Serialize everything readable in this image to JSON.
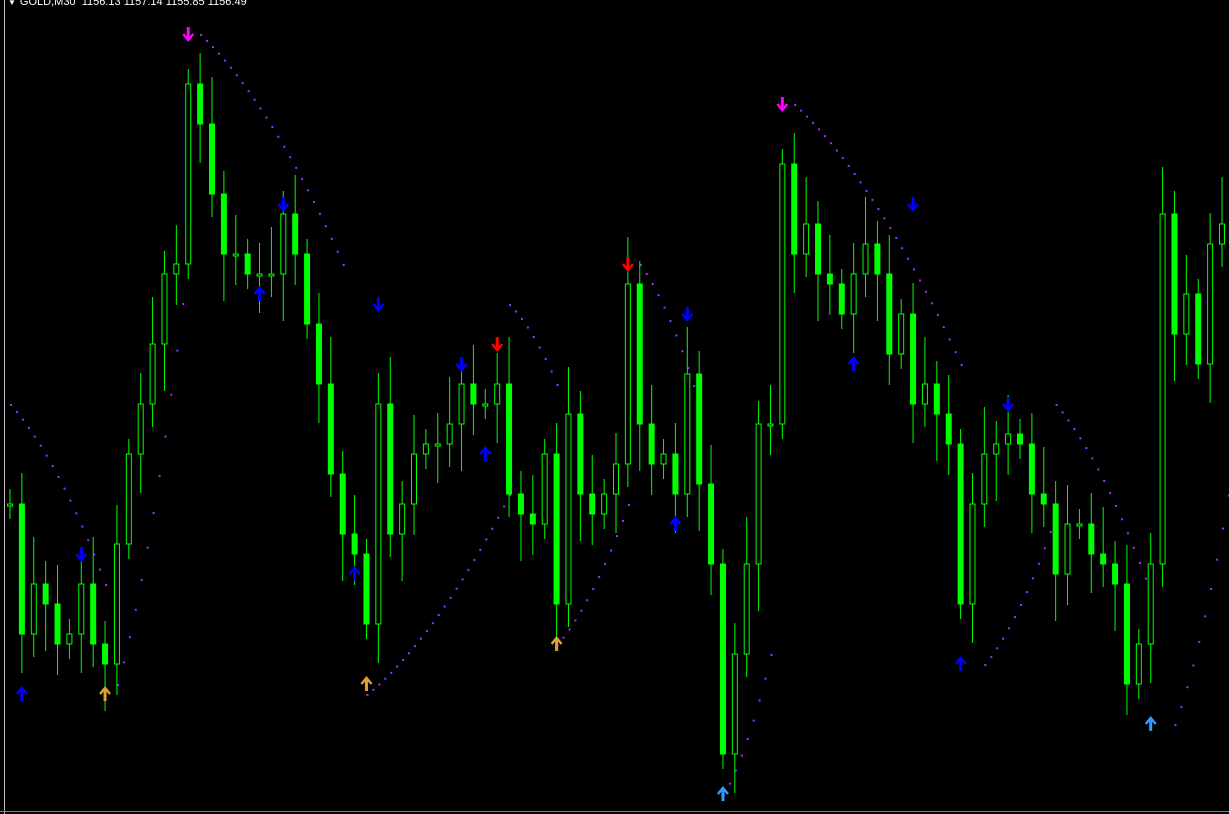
{
  "header": {
    "symbol": "GOLD,M30",
    "open": "1156.13",
    "high": "1157.14",
    "low": "1155.85",
    "close": "1156.49"
  },
  "colors": {
    "background": "#000000",
    "candle": "#00ff00",
    "sar": "#9933ff",
    "magenta": "#ff00ff",
    "blue": "#0000ff",
    "red": "#ff0000",
    "orange": "#e0a030",
    "lightblue": "#3399ff"
  },
  "chart_data": {
    "type": "candlestick",
    "symbol": "GOLD",
    "timeframe": "M30",
    "grid": false,
    "closes": [
      1131,
      1118,
      1123,
      1121,
      1117,
      1118,
      1123,
      1117,
      1115,
      1127,
      1136,
      1141,
      1147,
      1154,
      1155,
      1173,
      1169,
      1162,
      1156,
      1156,
      1154,
      1154,
      1154,
      1160,
      1156,
      1149,
      1143,
      1134,
      1128,
      1126,
      1119,
      1141,
      1128,
      1131,
      1136,
      1137,
      1137,
      1139,
      1143,
      1141,
      1141,
      1143,
      1132,
      1130,
      1129,
      1136,
      1121,
      1140,
      1132,
      1130,
      1132,
      1135,
      1153,
      1139,
      1135,
      1136,
      1132,
      1144,
      1133,
      1125,
      1106,
      1116,
      1125,
      1139,
      1139,
      1165,
      1156,
      1159,
      1154,
      1153,
      1150,
      1154,
      1157,
      1154,
      1146,
      1150,
      1141,
      1143,
      1140,
      1137,
      1121,
      1131,
      1136,
      1137,
      1138,
      1137,
      1132,
      1131,
      1124,
      1129,
      1129,
      1126,
      1125,
      1123,
      1113,
      1117,
      1125,
      1160,
      1148,
      1152,
      1145,
      1157,
      1159
    ],
    "arrows": [
      {
        "i": 1,
        "price": 1112,
        "dir": "up",
        "color": "blue"
      },
      {
        "i": 6,
        "price": 1126,
        "dir": "down",
        "color": "blue"
      },
      {
        "i": 8,
        "price": 1112,
        "dir": "up",
        "color": "orange"
      },
      {
        "i": 15,
        "price": 1178,
        "dir": "down",
        "color": "magenta"
      },
      {
        "i": 21,
        "price": 1152,
        "dir": "up",
        "color": "blue"
      },
      {
        "i": 23,
        "price": 1161,
        "dir": "down",
        "color": "blue"
      },
      {
        "i": 29,
        "price": 1124,
        "dir": "up",
        "color": "blue"
      },
      {
        "i": 30,
        "price": 1113,
        "dir": "up",
        "color": "orange"
      },
      {
        "i": 31,
        "price": 1151,
        "dir": "down",
        "color": "blue"
      },
      {
        "i": 38,
        "price": 1145,
        "dir": "down",
        "color": "blue"
      },
      {
        "i": 40,
        "price": 1136,
        "dir": "up",
        "color": "blue"
      },
      {
        "i": 41,
        "price": 1147,
        "dir": "down",
        "color": "red"
      },
      {
        "i": 46,
        "price": 1117,
        "dir": "up",
        "color": "orange"
      },
      {
        "i": 52,
        "price": 1155,
        "dir": "down",
        "color": "red"
      },
      {
        "i": 56,
        "price": 1129,
        "dir": "up",
        "color": "blue"
      },
      {
        "i": 57,
        "price": 1150,
        "dir": "down",
        "color": "blue"
      },
      {
        "i": 60,
        "price": 1102,
        "dir": "up",
        "color": "lightblue"
      },
      {
        "i": 65,
        "price": 1171,
        "dir": "down",
        "color": "magenta"
      },
      {
        "i": 71,
        "price": 1145,
        "dir": "up",
        "color": "blue"
      },
      {
        "i": 76,
        "price": 1161,
        "dir": "down",
        "color": "blue"
      },
      {
        "i": 80,
        "price": 1115,
        "dir": "up",
        "color": "blue"
      },
      {
        "i": 84,
        "price": 1141,
        "dir": "down",
        "color": "blue"
      },
      {
        "i": 96,
        "price": 1109,
        "dir": "up",
        "color": "lightblue"
      }
    ],
    "sar_segments": [
      [
        [
          0,
          1141
        ],
        [
          8,
          1123
        ]
      ],
      [
        [
          9,
          1113
        ],
        [
          15,
          1156
        ]
      ],
      [
        [
          16,
          1178
        ],
        [
          28,
          1155
        ]
      ],
      [
        [
          30,
          1112
        ],
        [
          42,
          1132
        ]
      ],
      [
        [
          42,
          1151
        ],
        [
          46,
          1143
        ]
      ],
      [
        [
          46,
          1117
        ],
        [
          52,
          1131
        ]
      ],
      [
        [
          53,
          1155
        ],
        [
          58,
          1141
        ]
      ],
      [
        [
          60,
          1102
        ],
        [
          64,
          1116
        ]
      ],
      [
        [
          66,
          1171
        ],
        [
          80,
          1145
        ]
      ],
      [
        [
          82,
          1115
        ],
        [
          88,
          1130
        ]
      ],
      [
        [
          88,
          1141
        ],
        [
          96,
          1122
        ]
      ],
      [
        [
          98,
          1109
        ],
        [
          104,
          1143
        ]
      ]
    ]
  }
}
